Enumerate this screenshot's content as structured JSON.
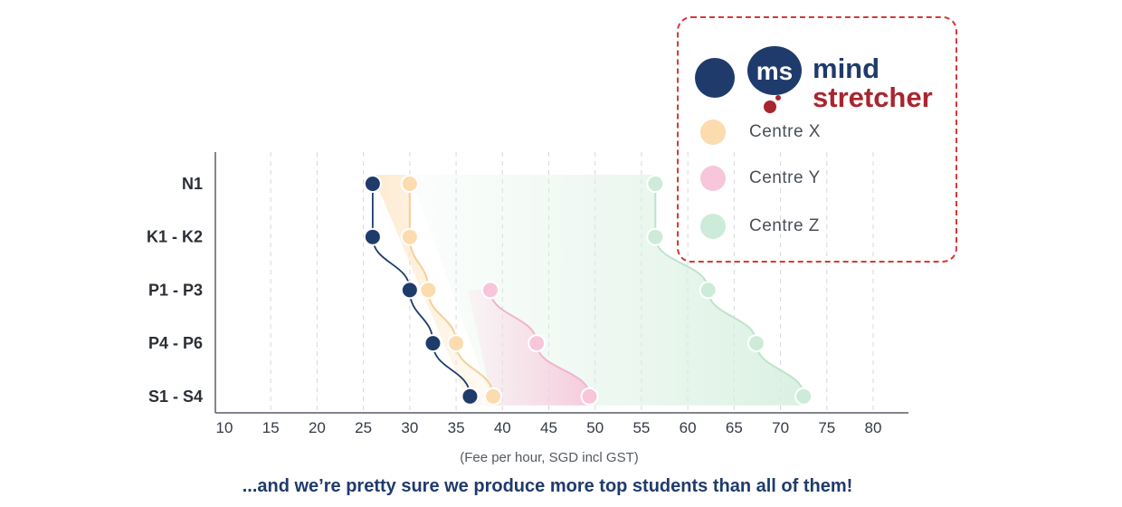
{
  "chart_data": {
    "type": "scatter",
    "categories": [
      "N1",
      "K1 - K2",
      "P1 - P3",
      "P4 - P6",
      "S1 - S4"
    ],
    "xlabel": "(Fee per hour, SGD incl GST)",
    "xlim": [
      10,
      80
    ],
    "x_ticks": [
      "10",
      "15",
      "20",
      "25",
      "30",
      "35",
      "40",
      "45",
      "50",
      "55",
      "60",
      "65",
      "70",
      "75",
      "80"
    ],
    "grid": "vertical-dashed",
    "legend_placement": "top-right",
    "series": [
      {
        "name": "mind stretcher",
        "color": "#1f3b6b",
        "values": [
          26,
          26,
          30,
          32.5,
          36.5
        ]
      },
      {
        "name": "Centre X",
        "color": "#fcdcae",
        "values": [
          30,
          30,
          32,
          35,
          39
        ]
      },
      {
        "name": "Centre Y",
        "color": "#f7c6da",
        "values": [
          null,
          null,
          38.7,
          43.7,
          49.4
        ]
      },
      {
        "name": "Centre Z",
        "color": "#cdebd8",
        "values": [
          56.5,
          56.5,
          62.2,
          67.4,
          72.5
        ]
      }
    ]
  },
  "legend": {
    "brand_logo": {
      "prefix": "ms",
      "line1": "mind",
      "line2": "stretcher"
    },
    "items": [
      {
        "label": "Centre X",
        "color": "#fcdcae"
      },
      {
        "label": "Centre Y",
        "color": "#f7c6da"
      },
      {
        "label": "Centre Z",
        "color": "#cdebd8"
      }
    ]
  },
  "footer": {
    "text": "...and we’re pretty sure we produce more top students than all of them!"
  },
  "colors": {
    "brand_navy": "#1f3b6b",
    "brand_red": "#a8252f",
    "legend_border": "#d23a3a"
  }
}
